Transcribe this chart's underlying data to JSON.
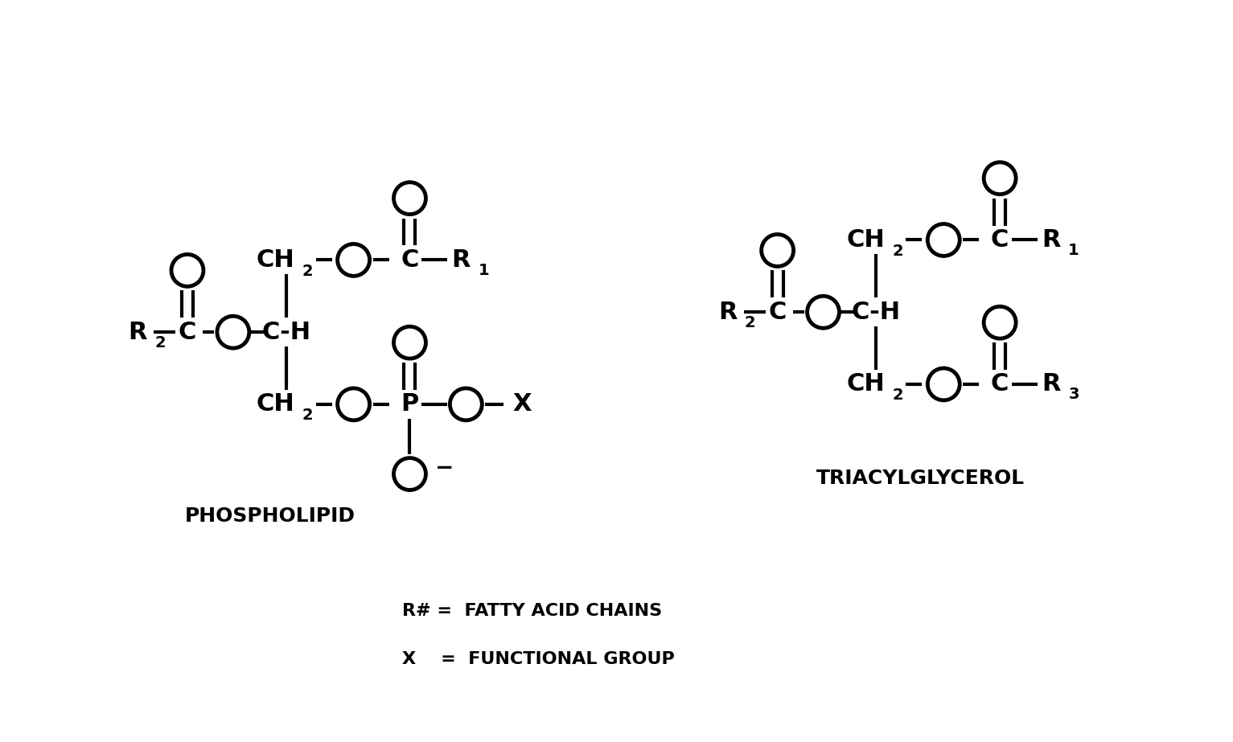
{
  "bg_color": "#ffffff",
  "fig_width": 15.33,
  "fig_height": 9.23,
  "dpi": 100,
  "phospholipid_label": "PHOSPHOLIPID",
  "triacylglycerol_label": "TRIACYLGLYCEROL",
  "legend_line1": "R# =  FATTY ACID CHAINS",
  "legend_line2": "X    =  FUNCTIONAL GROUP",
  "font_size_main": 22,
  "font_size_sub": 14,
  "font_size_label": 18,
  "font_size_legend": 16,
  "lw": 3.0,
  "circle_r": 0.2,
  "circle_lw": 3.5
}
